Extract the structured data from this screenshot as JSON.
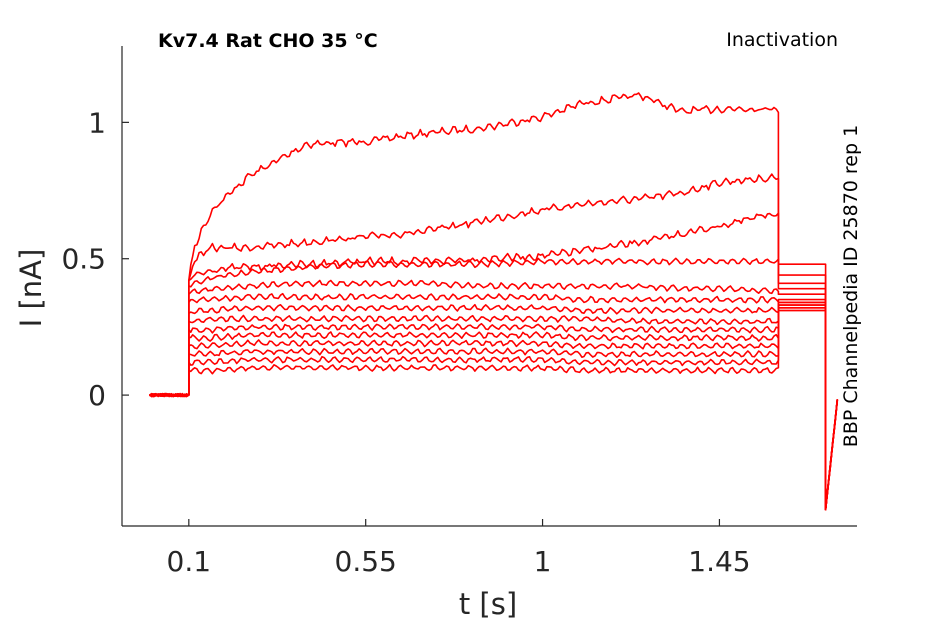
{
  "header": {
    "title": "Kv7.4  Rat  CHO  35 °C",
    "protocol": "Inactivation",
    "source": "BBP Channelpedia ID 25870 rep 1"
  },
  "chart_data": {
    "type": "line",
    "xlabel": "t [s]",
    "ylabel": "I [nA]",
    "xlim": [
      -0.07,
      1.8
    ],
    "ylim": [
      -0.48,
      1.28
    ],
    "x_ticks": [
      0.1,
      0.55,
      1,
      1.45
    ],
    "x_tick_labels": [
      "0.1",
      "0.55",
      "1",
      "1.45"
    ],
    "y_ticks": [
      0,
      0.5,
      1
    ],
    "y_tick_labels": [
      "0",
      "0.5",
      "1"
    ],
    "grid": false,
    "legend": "none",
    "color": "#ff0000",
    "series": [
      {
        "x": [
          0.0,
          0.1,
          0.1,
          0.115,
          0.16,
          0.25,
          0.4,
          0.55,
          0.7,
          0.85,
          1.0,
          1.1,
          1.25,
          1.35,
          1.45,
          1.6,
          1.6,
          1.72,
          1.72,
          1.75
        ],
        "y": [
          0.0,
          0.0,
          0.42,
          0.55,
          0.68,
          0.8,
          0.92,
          0.93,
          0.96,
          0.98,
          1.02,
          1.07,
          1.1,
          1.04,
          1.05,
          1.05,
          0.48,
          0.48,
          -0.42,
          -0.02
        ]
      },
      {
        "x": [
          0.0,
          0.1,
          0.1,
          0.115,
          0.16,
          0.25,
          0.4,
          0.55,
          0.7,
          0.85,
          1.0,
          1.1,
          1.25,
          1.35,
          1.45,
          1.6,
          1.6,
          1.72,
          1.72,
          1.75
        ],
        "y": [
          0.0,
          0.0,
          0.42,
          0.5,
          0.54,
          0.54,
          0.56,
          0.58,
          0.6,
          0.64,
          0.68,
          0.7,
          0.72,
          0.74,
          0.78,
          0.8,
          0.44,
          0.44,
          -0.42,
          -0.02
        ]
      },
      {
        "x": [
          0.0,
          0.1,
          0.1,
          0.115,
          0.16,
          0.25,
          0.4,
          0.55,
          0.7,
          0.85,
          1.0,
          1.1,
          1.25,
          1.35,
          1.45,
          1.6,
          1.6,
          1.72,
          1.72,
          1.75
        ],
        "y": [
          0.0,
          0.0,
          0.42,
          0.44,
          0.46,
          0.47,
          0.48,
          0.49,
          0.49,
          0.5,
          0.51,
          0.53,
          0.56,
          0.59,
          0.62,
          0.67,
          0.41,
          0.41,
          -0.42,
          -0.02
        ]
      },
      {
        "x": [
          0.0,
          0.1,
          0.1,
          0.115,
          0.16,
          0.25,
          0.4,
          0.55,
          0.7,
          0.85,
          1.0,
          1.1,
          1.25,
          1.35,
          1.45,
          1.6,
          1.6,
          1.72,
          1.72,
          1.75
        ],
        "y": [
          0.0,
          0.0,
          0.4,
          0.41,
          0.43,
          0.45,
          0.47,
          0.48,
          0.48,
          0.48,
          0.49,
          0.49,
          0.49,
          0.49,
          0.49,
          0.49,
          0.39,
          0.39,
          -0.42,
          -0.02
        ]
      },
      {
        "x": [
          0.0,
          0.1,
          0.1,
          0.115,
          0.16,
          0.25,
          0.4,
          0.55,
          0.7,
          0.85,
          1.0,
          1.1,
          1.25,
          1.35,
          1.45,
          1.6,
          1.6,
          1.72,
          1.72,
          1.75
        ],
        "y": [
          0.0,
          0.0,
          0.37,
          0.38,
          0.39,
          0.4,
          0.41,
          0.41,
          0.41,
          0.4,
          0.4,
          0.4,
          0.4,
          0.39,
          0.39,
          0.38,
          0.37,
          0.37,
          -0.42,
          -0.02
        ]
      },
      {
        "x": [
          0.0,
          0.1,
          0.1,
          0.115,
          0.16,
          0.25,
          0.4,
          0.55,
          0.7,
          0.85,
          1.0,
          1.1,
          1.25,
          1.35,
          1.45,
          1.6,
          1.6,
          1.72,
          1.72,
          1.75
        ],
        "y": [
          0.0,
          0.0,
          0.34,
          0.35,
          0.35,
          0.36,
          0.36,
          0.36,
          0.36,
          0.36,
          0.36,
          0.35,
          0.35,
          0.35,
          0.35,
          0.35,
          0.35,
          0.35,
          -0.42,
          -0.02
        ]
      },
      {
        "x": [
          0.0,
          0.1,
          0.1,
          0.115,
          0.16,
          0.25,
          0.4,
          0.55,
          0.7,
          0.85,
          1.0,
          1.1,
          1.25,
          1.35,
          1.45,
          1.6,
          1.6,
          1.72,
          1.72,
          1.75
        ],
        "y": [
          0.0,
          0.0,
          0.3,
          0.31,
          0.31,
          0.32,
          0.32,
          0.32,
          0.32,
          0.32,
          0.32,
          0.31,
          0.31,
          0.31,
          0.31,
          0.31,
          0.34,
          0.34,
          -0.42,
          -0.02
        ]
      },
      {
        "x": [
          0.0,
          0.1,
          0.1,
          0.115,
          0.16,
          0.25,
          0.4,
          0.55,
          0.7,
          0.85,
          1.0,
          1.1,
          1.25,
          1.35,
          1.45,
          1.6,
          1.6,
          1.72,
          1.72,
          1.75
        ],
        "y": [
          0.0,
          0.0,
          0.27,
          0.27,
          0.28,
          0.28,
          0.28,
          0.28,
          0.28,
          0.28,
          0.28,
          0.28,
          0.27,
          0.27,
          0.27,
          0.27,
          0.34,
          0.34,
          -0.42,
          -0.02
        ]
      },
      {
        "x": [
          0.0,
          0.1,
          0.1,
          0.115,
          0.16,
          0.25,
          0.4,
          0.55,
          0.7,
          0.85,
          1.0,
          1.1,
          1.25,
          1.35,
          1.45,
          1.6,
          1.6,
          1.72,
          1.72,
          1.75
        ],
        "y": [
          0.0,
          0.0,
          0.24,
          0.24,
          0.24,
          0.25,
          0.25,
          0.25,
          0.25,
          0.25,
          0.25,
          0.24,
          0.24,
          0.24,
          0.24,
          0.24,
          0.33,
          0.33,
          -0.42,
          -0.02
        ]
      },
      {
        "x": [
          0.0,
          0.1,
          0.1,
          0.115,
          0.16,
          0.25,
          0.4,
          0.55,
          0.7,
          0.85,
          1.0,
          1.1,
          1.25,
          1.35,
          1.45,
          1.6,
          1.6,
          1.72,
          1.72,
          1.75
        ],
        "y": [
          0.0,
          0.0,
          0.21,
          0.21,
          0.21,
          0.22,
          0.22,
          0.22,
          0.22,
          0.22,
          0.22,
          0.21,
          0.21,
          0.21,
          0.21,
          0.21,
          0.33,
          0.33,
          -0.42,
          -0.02
        ]
      },
      {
        "x": [
          0.0,
          0.1,
          0.1,
          0.115,
          0.16,
          0.25,
          0.4,
          0.55,
          0.7,
          0.85,
          1.0,
          1.1,
          1.25,
          1.35,
          1.45,
          1.6,
          1.6,
          1.72,
          1.72,
          1.75
        ],
        "y": [
          0.0,
          0.0,
          0.18,
          0.18,
          0.18,
          0.19,
          0.19,
          0.19,
          0.19,
          0.19,
          0.19,
          0.18,
          0.18,
          0.18,
          0.18,
          0.18,
          0.32,
          0.32,
          -0.42,
          -0.02
        ]
      },
      {
        "x": [
          0.0,
          0.1,
          0.1,
          0.115,
          0.16,
          0.25,
          0.4,
          0.55,
          0.7,
          0.85,
          1.0,
          1.1,
          1.25,
          1.35,
          1.45,
          1.6,
          1.6,
          1.72,
          1.72,
          1.75
        ],
        "y": [
          0.0,
          0.0,
          0.15,
          0.15,
          0.15,
          0.16,
          0.16,
          0.16,
          0.16,
          0.16,
          0.16,
          0.15,
          0.15,
          0.15,
          0.15,
          0.15,
          0.32,
          0.32,
          -0.42,
          -0.02
        ]
      },
      {
        "x": [
          0.0,
          0.1,
          0.1,
          0.115,
          0.16,
          0.25,
          0.4,
          0.55,
          0.7,
          0.85,
          1.0,
          1.1,
          1.25,
          1.35,
          1.45,
          1.6,
          1.6,
          1.72,
          1.72,
          1.75
        ],
        "y": [
          0.0,
          0.0,
          0.12,
          0.12,
          0.12,
          0.13,
          0.13,
          0.13,
          0.13,
          0.13,
          0.13,
          0.12,
          0.12,
          0.12,
          0.12,
          0.12,
          0.31,
          0.31,
          -0.42,
          -0.02
        ]
      },
      {
        "x": [
          0.0,
          0.1,
          0.1,
          0.115,
          0.16,
          0.25,
          0.4,
          0.55,
          0.7,
          0.85,
          1.0,
          1.1,
          1.25,
          1.35,
          1.45,
          1.6,
          1.6,
          1.72,
          1.72,
          1.75
        ],
        "y": [
          0.0,
          0.0,
          0.09,
          0.09,
          0.09,
          0.1,
          0.1,
          0.1,
          0.1,
          0.1,
          0.1,
          0.09,
          0.09,
          0.09,
          0.09,
          0.09,
          0.31,
          0.31,
          -0.42,
          -0.02
        ]
      }
    ]
  }
}
